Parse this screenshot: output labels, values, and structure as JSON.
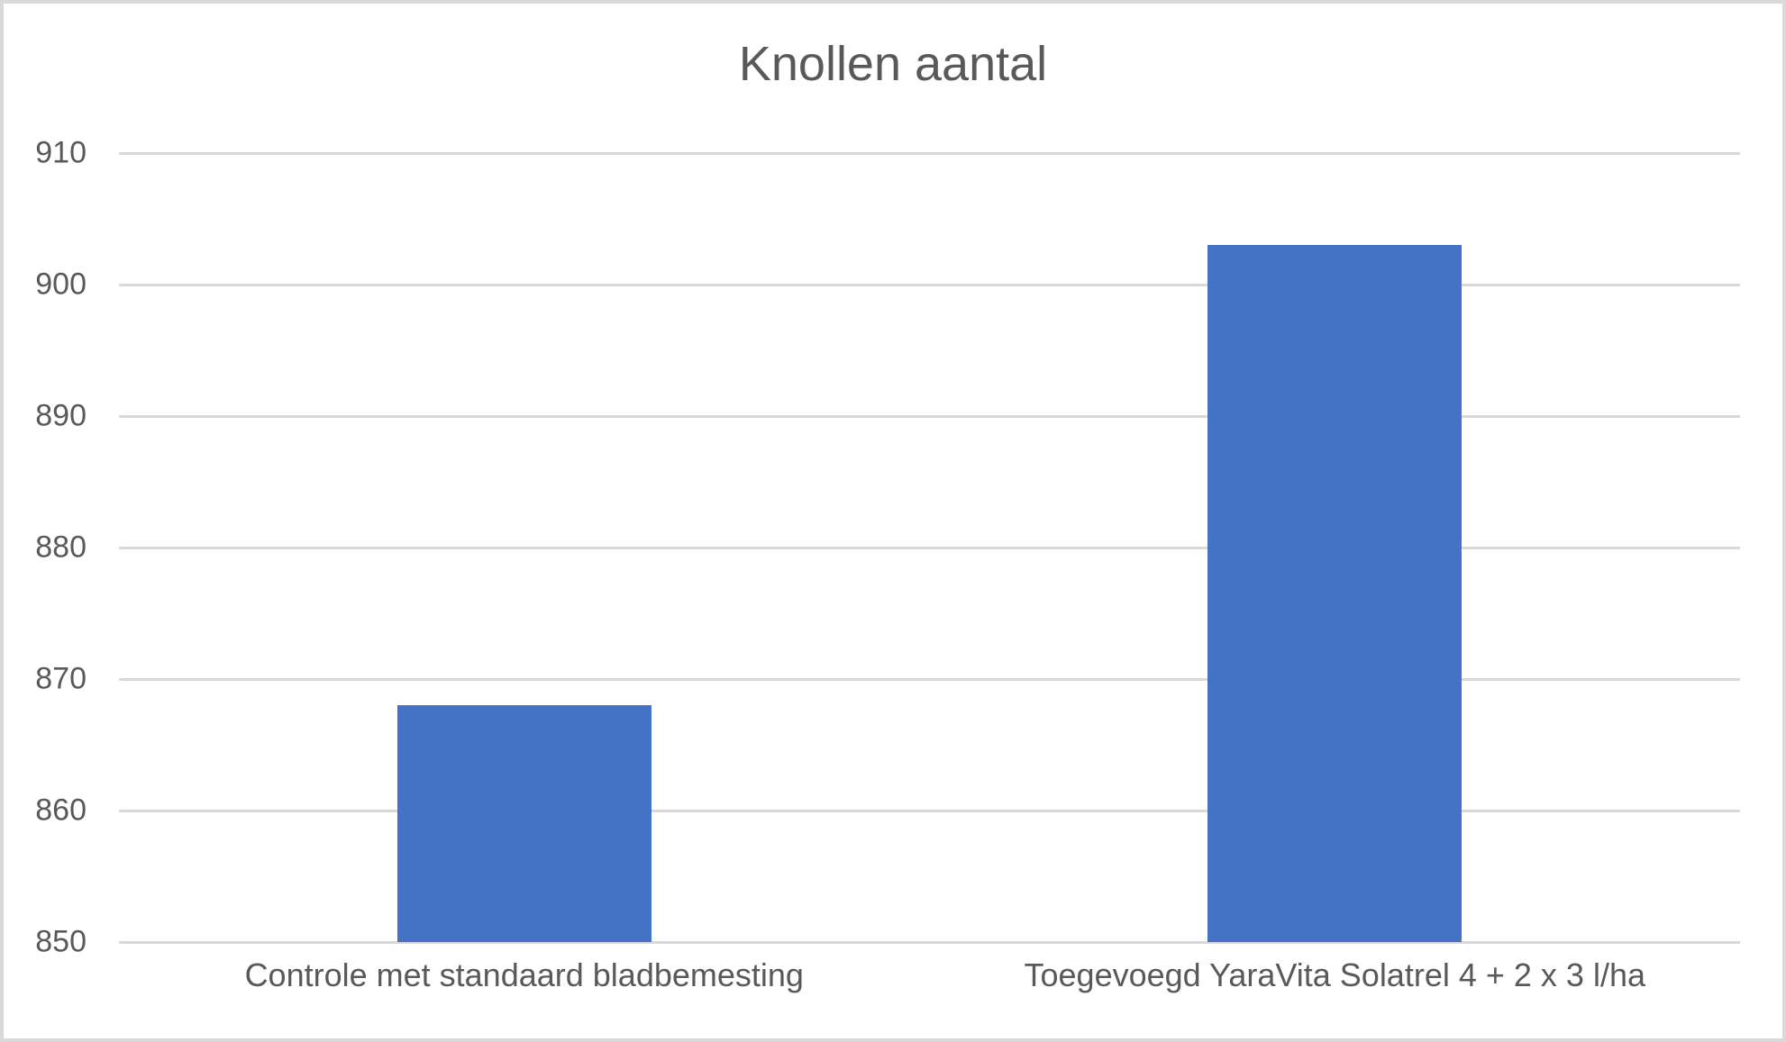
{
  "chart_data": {
    "type": "bar",
    "title": "Knollen aantal",
    "categories": [
      "Controle met standaard bladbemesting",
      "Toegevoegd YaraVita Solatrel 4 + 2 x 3 l/ha"
    ],
    "values": [
      868,
      903
    ],
    "xlabel": "",
    "ylabel": "",
    "ylim": [
      850,
      910
    ],
    "yticks": [
      850,
      860,
      870,
      880,
      890,
      900,
      910
    ],
    "grid": "horizontal",
    "legend": "none",
    "bar_color": "#4472c4",
    "gridline_color": "#d9d9d9",
    "text_color": "#595959",
    "border_color": "#d9d9d9"
  }
}
